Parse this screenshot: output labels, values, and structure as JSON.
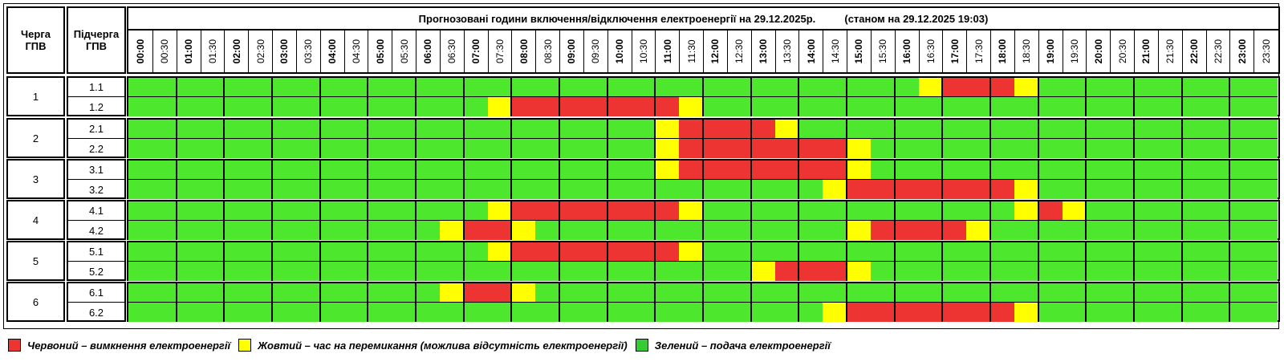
{
  "header": {
    "col_queue": "Черга\nГПВ",
    "col_subqueue": "Підчерга\nГПВ",
    "title": "Прогнозовані години включення/відключення електроенергії на 29.12.2025р.          (станом на 29.12.2025 19:03)"
  },
  "times": [
    "00:00",
    "00:30",
    "01:00",
    "01:30",
    "02:00",
    "02:30",
    "03:00",
    "03:30",
    "04:00",
    "04:30",
    "05:00",
    "05:30",
    "06:00",
    "06:30",
    "07:00",
    "07:30",
    "08:00",
    "08:30",
    "09:00",
    "09:30",
    "10:00",
    "10:30",
    "11:00",
    "11:30",
    "12:00",
    "12:30",
    "13:00",
    "13:30",
    "14:00",
    "14:30",
    "15:00",
    "15:30",
    "16:00",
    "16:30",
    "17:00",
    "17:30",
    "18:00",
    "18:30",
    "19:00",
    "19:30",
    "20:00",
    "20:30",
    "21:00",
    "21:30",
    "22:00",
    "22:30",
    "23:00",
    "23:30"
  ],
  "colors": {
    "R": "#ee3333",
    "Y": "#ffff00",
    "G": "#4de82e"
  },
  "schedule_encoding": "G = green, Y = yellow, R = red; one character per 30-minute slot",
  "groups": [
    {
      "name": "1",
      "subgroups": [
        {
          "name": "1.1",
          "slots": "GGGGGGGGGGGGGGGGGGGGGGGGGGGGGGGGGYRRRYGGGGGGGGGG"
        },
        {
          "name": "1.2",
          "slots": "GGGGGGGGGGGGGGGYRRRRRRRYGGGGGGGGGGGGGGGGGGGGGGGG"
        }
      ]
    },
    {
      "name": "2",
      "subgroups": [
        {
          "name": "2.1",
          "slots": "GGGGGGGGGGGGGGGGGGGGGGYRRRRYGGGGGGGGGGGGGGGGGGGG"
        },
        {
          "name": "2.2",
          "slots": "GGGGGGGGGGGGGGGGGGGGGGYRRRRRRRYGGGGGGGGGGGGGGGGG"
        }
      ]
    },
    {
      "name": "3",
      "subgroups": [
        {
          "name": "3.1",
          "slots": "GGGGGGGGGGGGGGGGGGGGGGYRRRRRRRYGGGGGGGGGGGGGGGGG"
        },
        {
          "name": "3.2",
          "slots": "GGGGGGGGGGGGGGGGGGGGGGGGGGGGGYRRRRRRRYGGGGGGGGGG"
        }
      ]
    },
    {
      "name": "4",
      "subgroups": [
        {
          "name": "4.1",
          "slots": "GGGGGGGGGGGGGGGYRRRRRRRYGGGGGGGGGGGGGYRYGGGGGGGG"
        },
        {
          "name": "4.2",
          "slots": "GGGGGGGGGGGGGYRRYGGGGGGGGGGGGGYRRRRYGGGGGGGGGGGG"
        }
      ]
    },
    {
      "name": "5",
      "subgroups": [
        {
          "name": "5.1",
          "slots": "GGGGGGGGGGGGGGGYRRRRRRRYGGGGGGGGGGGGGGGGGGGGGGGG"
        },
        {
          "name": "5.2",
          "slots": "GGGGGGGGGGGGGGGGGGGGGGGGGGYRRRYGGGGGGGGGGGGGGGGG"
        }
      ]
    },
    {
      "name": "6",
      "subgroups": [
        {
          "name": "6.1",
          "slots": "GGGGGGGGGGGGGYRRYGGGGGGGGGGGGGGGGGGGGGGGGGGGGGGG"
        },
        {
          "name": "6.2",
          "slots": "GGGGGGGGGGGGGGGGGGGGGGGGGGGGGYRRRRRRRYGGGGGGGGGG"
        }
      ]
    }
  ],
  "legend": [
    {
      "color": "#ee3333",
      "label": "Червоний – вимкнення електроенергії"
    },
    {
      "color": "#ffff00",
      "label": "Жовтий – час на перемикання (можлива відсутність електроенергії)"
    },
    {
      "color": "#33cc33",
      "label": "Зелений – подача електроенергії"
    }
  ]
}
